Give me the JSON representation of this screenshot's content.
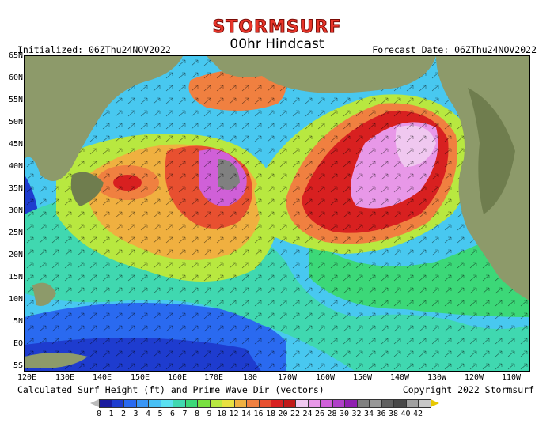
{
  "brand": "STORMSURF",
  "subtitle": "00hr Hindcast",
  "initialized": "Initialized: 06ZThu24NOV2022",
  "forecast_date": "Forecast Date: 06ZThu24NOV2022",
  "caption_left": "Calculated Surf Height (ft) and Prime Wave Dir (vectors)",
  "caption_right": "Copyright 2022 Stormsurf",
  "lat_labels": [
    "65N",
    "60N",
    "55N",
    "50N",
    "45N",
    "40N",
    "35N",
    "30N",
    "25N",
    "20N",
    "15N",
    "10N",
    "5N",
    "EQ",
    "5S"
  ],
  "lon_labels": [
    "120E",
    "130E",
    "140E",
    "150E",
    "160E",
    "170E",
    "180",
    "170W",
    "160W",
    "150W",
    "140W",
    "130W",
    "120W",
    "110W"
  ],
  "scale": {
    "values": [
      "0",
      "1",
      "2",
      "3",
      "4",
      "5",
      "6",
      "7",
      "8",
      "9",
      "10",
      "12",
      "14",
      "16",
      "18",
      "20",
      "22",
      "24",
      "26",
      "28",
      "30",
      "32",
      "34",
      "36",
      "38",
      "40",
      "42"
    ],
    "colors": [
      "#1a1a9e",
      "#1e3ccf",
      "#2a6af0",
      "#3a96f5",
      "#48c0f5",
      "#5ae0f0",
      "#40d8b0",
      "#3cd878",
      "#78e040",
      "#b8e840",
      "#e8e040",
      "#f0b040",
      "#f08040",
      "#e85030",
      "#d82020",
      "#c01818",
      "#f0c8f0",
      "#e898e8",
      "#d060d8",
      "#b040c8",
      "#9020b0",
      "#808080",
      "#989898",
      "#606060",
      "#484848",
      "#a0a0a0",
      "#c8c8c8"
    ],
    "under_color": "#bbbbbb",
    "over_color": "#e8c800"
  },
  "map_colors": {
    "land": "#8d9a6a",
    "land_dark": "#6f7d4e",
    "ocean_base": "#48c8f0"
  }
}
